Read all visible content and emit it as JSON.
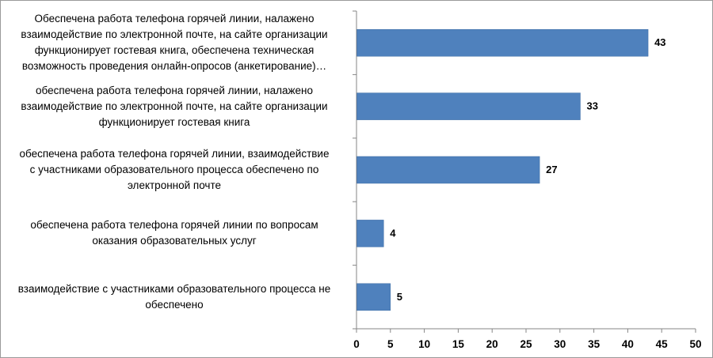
{
  "chart_data": {
    "type": "bar",
    "orientation": "horizontal",
    "categories": [
      [
        "Обеспечена работа телефона горячей линии, налажено",
        "взаимодействие по электронной почте, на сайте организации",
        "функционирует гостевая книга, обеспечена техническая",
        "возможность проведения онлайн-опросов (анкетирование)…"
      ],
      [
        "обеспечена работа телефона горячей линии, налажено",
        "взаимодействие по электронной почте, на сайте организации",
        "функционирует гостевая книга"
      ],
      [
        "обеспечена работа телефона горячей линии, взаимодействие",
        "с участниками образовательного процесса обеспечено по",
        "электронной почте"
      ],
      [
        "обеспечена работа телефона горячей линии по вопросам",
        "оказания образовательных услуг"
      ],
      [
        "взаимодействие с участниками образовательного процесса не",
        "обеспечено"
      ]
    ],
    "values": [
      43,
      33,
      27,
      4,
      5
    ],
    "value_labels": [
      "43",
      "33",
      "27",
      "4",
      "5"
    ],
    "xlim": [
      0,
      50
    ],
    "x_ticks": [
      "0",
      "5",
      "10",
      "15",
      "20",
      "25",
      "30",
      "35",
      "40",
      "45",
      "50"
    ],
    "bar_color": "#4F81BD",
    "grid": false,
    "legend": "none"
  }
}
